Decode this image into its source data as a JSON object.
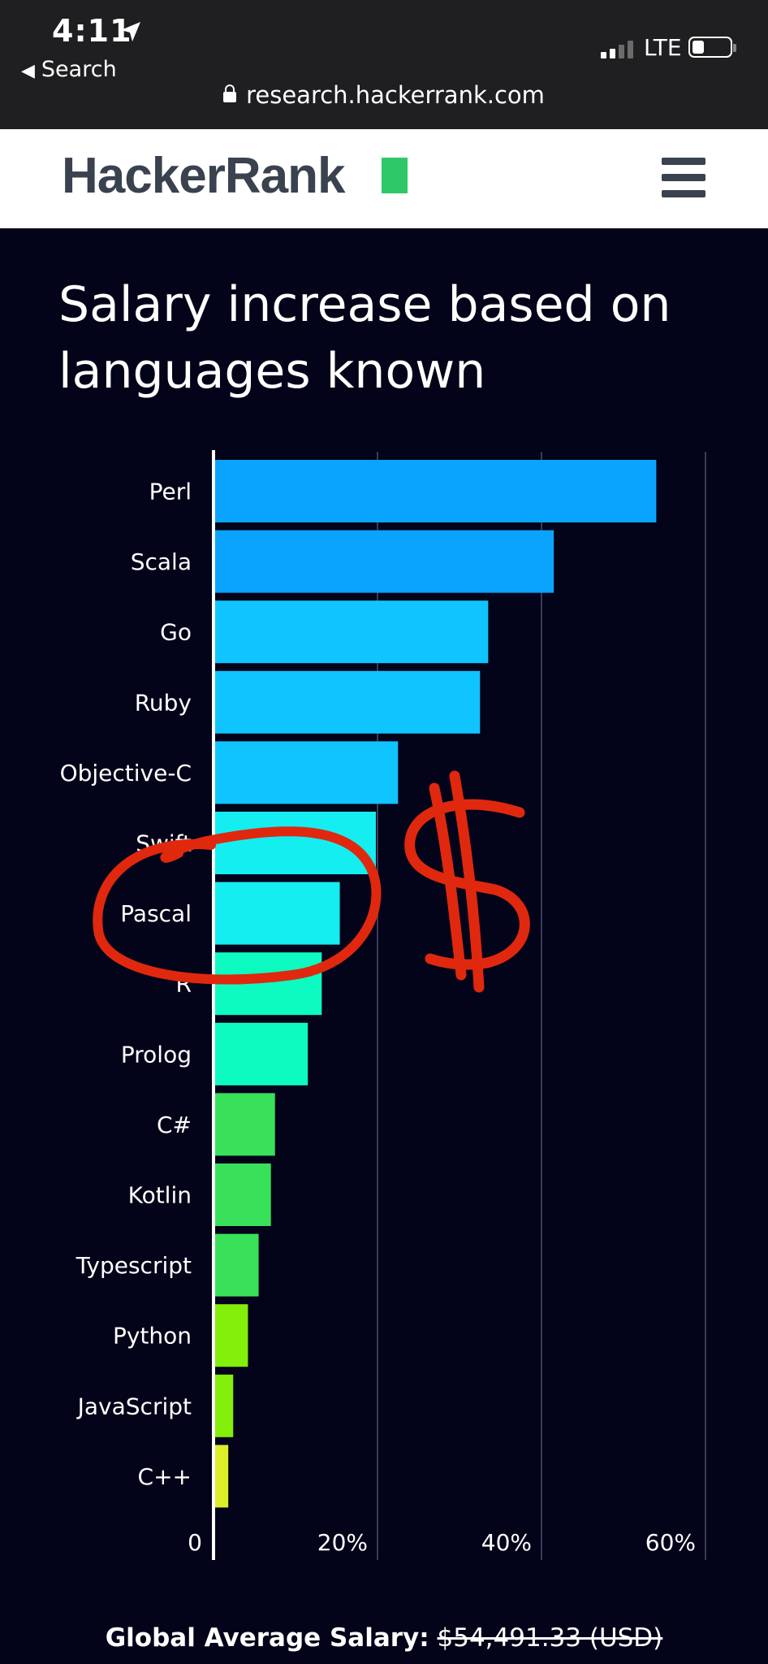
{
  "status_bar": {
    "time": "4:11",
    "back_label": "Search",
    "network": "LTE",
    "url": "research.hackerrank.com"
  },
  "header": {
    "logo_text": "HackerRank",
    "brand_color": "#2ec866",
    "menu_icon": "hamburger-menu-icon"
  },
  "page": {
    "title": "Salary increase based on languages known"
  },
  "chart_data": {
    "type": "bar",
    "orientation": "horizontal",
    "title": "Salary increase based on languages known",
    "categories": [
      "Perl",
      "Scala",
      "Go",
      "Ruby",
      "Objective-C",
      "Swift",
      "Pascal",
      "R",
      "Prolog",
      "C#",
      "Kotlin",
      "Typescript",
      "Python",
      "JavaScript",
      "C++"
    ],
    "values": [
      54,
      41.5,
      33.5,
      32.5,
      22.5,
      19.8,
      15.4,
      13.2,
      11.5,
      7.5,
      7,
      5.5,
      4.2,
      2.4,
      1.8
    ],
    "colors": [
      "#0aa4ff",
      "#0aa4ff",
      "#10c4ff",
      "#10c4ff",
      "#10c4ff",
      "#14eef0",
      "#14eef0",
      "#0dfac0",
      "#0dfac0",
      "#39e05a",
      "#39e05a",
      "#39e05a",
      "#82ee0a",
      "#82ee0a",
      "#dcee2a"
    ],
    "xlim": [
      0,
      60
    ],
    "x_ticks": [
      "0",
      "20%",
      "40%",
      "60%"
    ],
    "x_tick_values": [
      0,
      20,
      40,
      60
    ],
    "grid": true,
    "xlabel": "",
    "ylabel": ""
  },
  "footer": {
    "label": "Global Average Salary:",
    "value": "$54,491.33 (USD)"
  },
  "annotations": {
    "color": "#e0280f",
    "items": [
      "circle-around-pascal",
      "dollar-sign-scribble"
    ]
  }
}
